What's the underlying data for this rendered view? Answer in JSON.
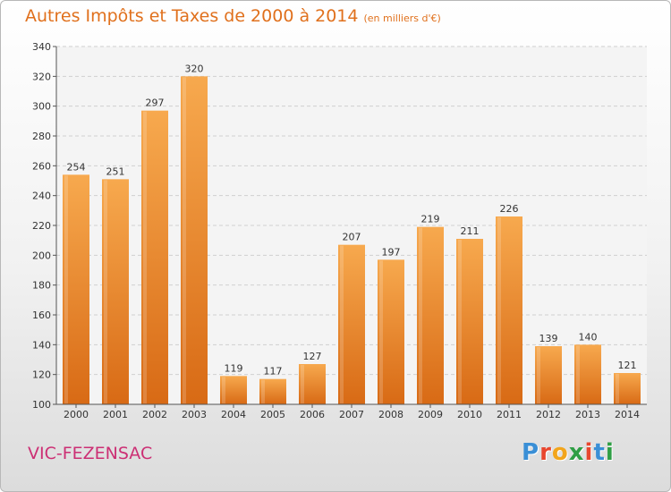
{
  "chart_data": {
    "type": "bar",
    "title": "Autres Impôts et Taxes de 2000 à 2014",
    "subtitle": "(en milliers d'€)",
    "categories": [
      "2000",
      "2001",
      "2002",
      "2003",
      "2004",
      "2005",
      "2006",
      "2007",
      "2008",
      "2009",
      "2010",
      "2011",
      "2012",
      "2013",
      "2014"
    ],
    "values": [
      254,
      251,
      297,
      320,
      119,
      117,
      127,
      207,
      197,
      219,
      211,
      226,
      139,
      140,
      121
    ],
    "ylim": [
      100,
      340
    ],
    "yticks": [
      100,
      120,
      140,
      160,
      180,
      200,
      220,
      240,
      260,
      280,
      300,
      320,
      340
    ],
    "grid": true,
    "bar_color": "#f29a3c",
    "bar_color_dark": "#e07a20"
  },
  "footer": {
    "city": "VIC-FEZENSAC",
    "logo_letters": [
      "P",
      "r",
      "o",
      "x",
      "i",
      "t",
      "i"
    ],
    "logo_colors": [
      "#3a8fd6",
      "#e8462e",
      "#f2a51c",
      "#2f9e45",
      "#e8462e",
      "#3a8fd6",
      "#2f9e45"
    ]
  }
}
